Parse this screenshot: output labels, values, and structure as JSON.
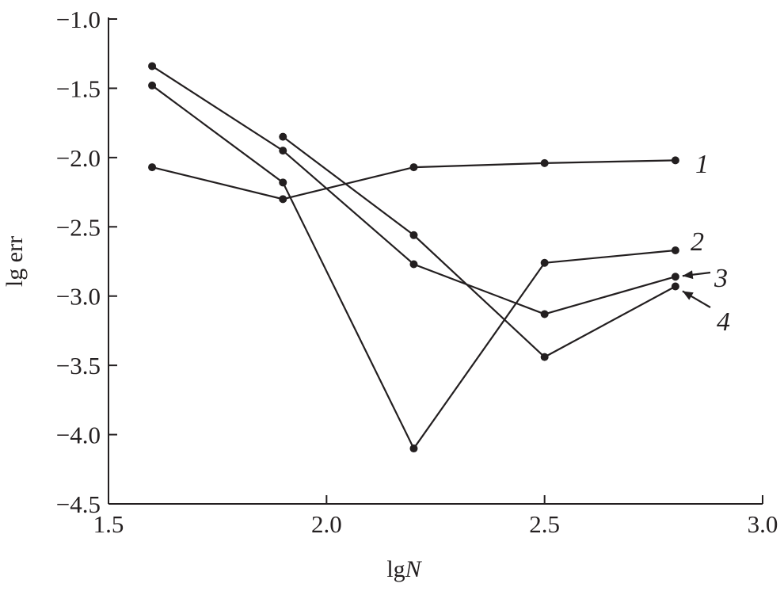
{
  "chart_data": {
    "type": "line",
    "title": "",
    "xlabel": "lg",
    "xlabel_var": "N",
    "ylabel": "lg err",
    "xlim": [
      1.5,
      3.0
    ],
    "ylim": [
      -4.5,
      -1.0
    ],
    "xticks": [
      1.5,
      2.0,
      2.5,
      3.0
    ],
    "xtick_labels": [
      "1.5",
      "2.0",
      "2.5",
      "3.0"
    ],
    "yticks": [
      -1.0,
      -1.5,
      -2.0,
      -2.5,
      -3.0,
      -3.5,
      -4.0,
      -4.5
    ],
    "ytick_labels": [
      "−1.0",
      "−1.5",
      "−2.0",
      "−2.5",
      "−3.0",
      "−3.5",
      "−4.0",
      "−4.5"
    ],
    "grid": false,
    "series": [
      {
        "name": "1",
        "x": [
          1.6,
          1.9,
          2.2,
          2.5,
          2.8
        ],
        "values": [
          -2.07,
          -2.3,
          -2.07,
          -2.04,
          -2.02
        ]
      },
      {
        "name": "2",
        "x": [
          1.6,
          1.9,
          2.2,
          2.5,
          2.8
        ],
        "values": [
          -1.48,
          -2.18,
          -4.1,
          -2.76,
          -2.67
        ]
      },
      {
        "name": "3",
        "x": [
          1.6,
          1.9,
          2.2,
          2.5,
          2.8
        ],
        "values": [
          -1.34,
          -1.95,
          -2.77,
          -3.13,
          -2.86
        ]
      },
      {
        "name": "4",
        "x": [
          1.9,
          2.2,
          2.5,
          2.8
        ],
        "values": [
          -1.85,
          -2.56,
          -3.44,
          -2.93
        ]
      }
    ],
    "color": "#231f20"
  }
}
